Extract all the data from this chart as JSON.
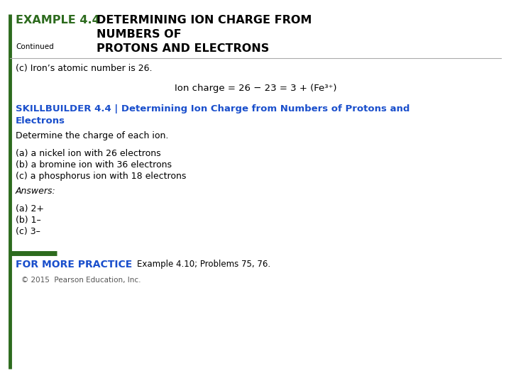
{
  "bg_color": "#ffffff",
  "left_bar_color": "#2d6b1e",
  "title_example_color": "#2d6b1e",
  "title_rest_color": "#000000",
  "blue_color": "#1a4fcc",
  "green_bar_color": "#2d6b1e",
  "continued_text": "Continued",
  "part_c_label": "(c) Iron’s atomic number is 26.",
  "equation": "Ion charge = 26 − 23 = 3 + (Fe³⁺)",
  "skillbuilder_bold": "SKILLBUILDER 4.4 | Determining Ion Charge from Numbers of Protons and",
  "skillbuilder_bold2": "Electrons",
  "determine_text": "Determine the charge of each ion.",
  "item_a": "(a) a nickel ion with 26 electrons",
  "item_b": "(b) a bromine ion with 36 electrons",
  "item_c": "(c) a phosphorus ion with 18 electrons",
  "answers_label": "Answers:",
  "ans_a": "(a) 2+",
  "ans_b": "(b) 1–",
  "ans_c": "(c) 3–",
  "for_more_label": "FOR MORE PRACTICE",
  "for_more_rest": "Example 4.10; Problems 75, 76.",
  "copyright": "© 2015  Pearson Education, Inc."
}
